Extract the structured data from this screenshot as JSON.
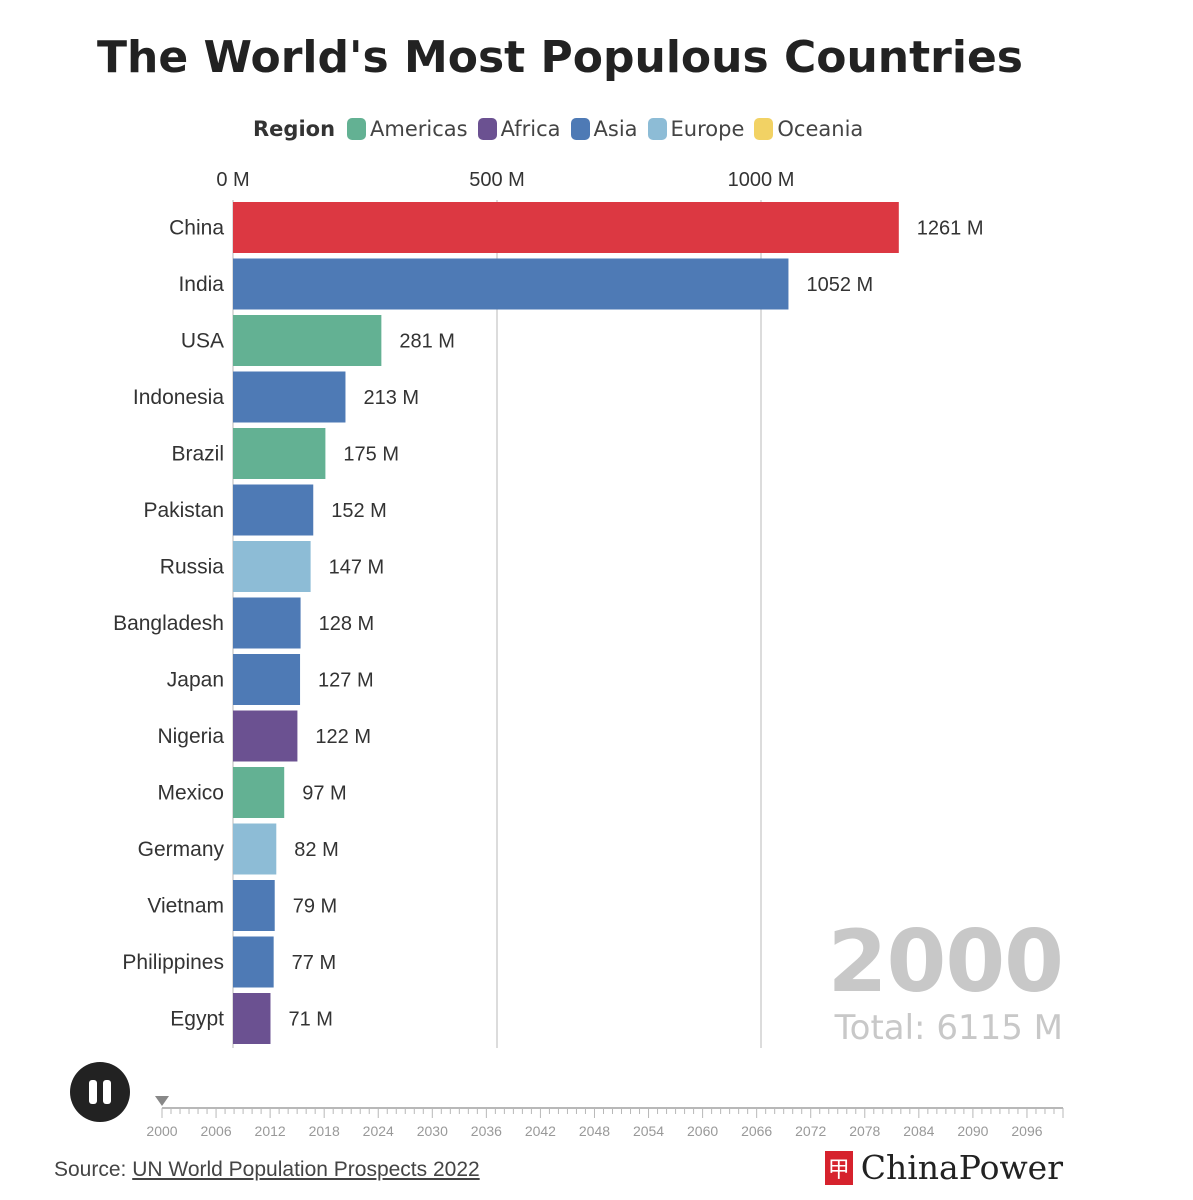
{
  "chart_data": {
    "type": "bar",
    "orientation": "horizontal",
    "title": "The World's Most Populous Countries",
    "legend": {
      "title": "Region",
      "placement": "top",
      "entries": [
        {
          "name": "Americas",
          "color": "#63b193"
        },
        {
          "name": "Africa",
          "color": "#6b5191"
        },
        {
          "name": "Asia",
          "color": "#4e7ab5"
        },
        {
          "name": "Europe",
          "color": "#8dbcd6"
        },
        {
          "name": "Oceania",
          "color": "#f2d264"
        }
      ]
    },
    "x_ticks": [
      "0 M",
      "500 M",
      "1000 M"
    ],
    "x_tick_values": [
      0,
      500,
      1000
    ],
    "xlim": [
      0,
      1300
    ],
    "grid": true,
    "categories": [
      "China",
      "India",
      "USA",
      "Indonesia",
      "Brazil",
      "Pakistan",
      "Russia",
      "Bangladesh",
      "Japan",
      "Nigeria",
      "Mexico",
      "Germany",
      "Vietnam",
      "Philippines",
      "Egypt"
    ],
    "values": [
      1261,
      1052,
      281,
      213,
      175,
      152,
      147,
      128,
      127,
      122,
      97,
      82,
      79,
      77,
      71
    ],
    "value_labels": [
      "1261 M",
      "1052 M",
      "281 M",
      "213 M",
      "175 M",
      "152 M",
      "147 M",
      "128 M",
      "127 M",
      "122 M",
      "97 M",
      "82 M",
      "79 M",
      "77 M",
      "71 M"
    ],
    "colors": [
      "#dc3842",
      "#4e7ab5",
      "#63b193",
      "#4e7ab5",
      "#63b193",
      "#4e7ab5",
      "#8dbcd6",
      "#4e7ab5",
      "#4e7ab5",
      "#6b5191",
      "#63b193",
      "#8dbcd6",
      "#4e7ab5",
      "#4e7ab5",
      "#6b5191"
    ],
    "year": "2000",
    "total": "Total: 6115 M"
  },
  "timeline": {
    "start": 2000,
    "end": 2100,
    "current": 2000,
    "labels": [
      "2000",
      "2006",
      "2012",
      "2018",
      "2024",
      "2030",
      "2036",
      "2042",
      "2048",
      "2054",
      "2060",
      "2066",
      "2072",
      "2078",
      "2084",
      "2090",
      "2096"
    ]
  },
  "footer": {
    "source_prefix": "Source: ",
    "source_link": "UN World Population Prospects 2022",
    "brand": "ChinaPower"
  }
}
